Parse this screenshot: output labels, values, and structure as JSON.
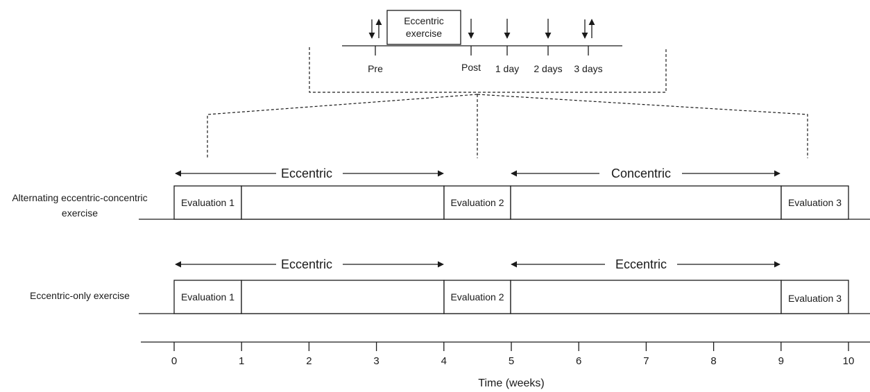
{
  "inset": {
    "exercise_box": [
      "Eccentric",
      "exercise"
    ],
    "timepoints": [
      "Pre",
      "Post",
      "1 day",
      "2 days",
      "3 days"
    ]
  },
  "groups": [
    {
      "label": [
        "Alternating eccentric-concentric",
        "exercise"
      ],
      "phases": [
        "Eccentric",
        "Concentric"
      ],
      "evaluations": [
        "Evaluation 1",
        "Evaluation 2",
        "Evaluation 3"
      ]
    },
    {
      "label": [
        "Eccentric-only exercise"
      ],
      "phases": [
        "Eccentric",
        "Eccentric"
      ],
      "evaluations": [
        "Evaluation 1",
        "Evaluation 2",
        "Evaluation 3"
      ]
    }
  ],
  "axis": {
    "ticks": [
      "0",
      "1",
      "2",
      "3",
      "4",
      "5",
      "6",
      "7",
      "8",
      "9",
      "10"
    ],
    "label": "Time (weeks)"
  }
}
